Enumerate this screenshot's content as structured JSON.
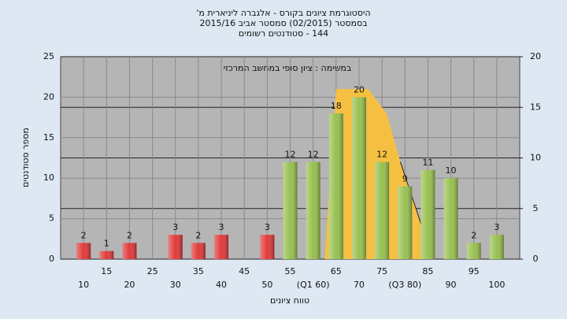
{
  "chart_data": {
    "type": "bar",
    "title": [
      "היסטוגרמת ציונים בקורס - אלגברה ליניארית מ'",
      "בסמסטר (02/2015) סמסטר אביב 2015/16",
      "144 - סטודנטים רשומים"
    ],
    "annotation": "במשימה : ציון סופי במחשב המרכזי",
    "y_label": "מספר סטודנטים",
    "x_label": "טווח ציונים",
    "x": [
      10,
      15,
      20,
      25,
      30,
      35,
      40,
      45,
      50,
      55,
      60,
      65,
      70,
      75,
      80,
      85,
      90,
      95,
      100
    ],
    "values": [
      2,
      1,
      2,
      0,
      3,
      2,
      3,
      0,
      3,
      12,
      12,
      18,
      20,
      12,
      9,
      11,
      10,
      2,
      3
    ],
    "colors": [
      "#e03a3a",
      "#e03a3a",
      "#e03a3a",
      "#e03a3a",
      "#e03a3a",
      "#e03a3a",
      "#e03a3a",
      "#e03a3a",
      "#e03a3a",
      "#98c050",
      "#98c050",
      "#98c050",
      "#98c050",
      "#98c050",
      "#98c050",
      "#98c050",
      "#98c050",
      "#98c050",
      "#98c050"
    ],
    "xlim": [
      5,
      105
    ],
    "xticks": [
      10,
      15,
      20,
      25,
      30,
      35,
      40,
      45,
      50,
      55,
      {
        "value": 60,
        "label": "(Q1 60)"
      },
      65,
      70,
      75,
      {
        "value": 80,
        "label": "(Q3 80)"
      },
      85,
      90,
      95,
      100
    ],
    "ylim": [
      0,
      25
    ],
    "yticks": [
      0,
      5,
      10,
      15,
      20,
      25
    ],
    "y2lim": [
      0,
      20
    ],
    "y2ticks": [
      0,
      5,
      10,
      15,
      20
    ],
    "area": {
      "color": "#f5c042",
      "x": [
        62.5,
        65,
        72,
        76,
        79,
        84
      ],
      "y": [
        0,
        21,
        21,
        18,
        12,
        3.5
      ]
    },
    "grid": true
  }
}
